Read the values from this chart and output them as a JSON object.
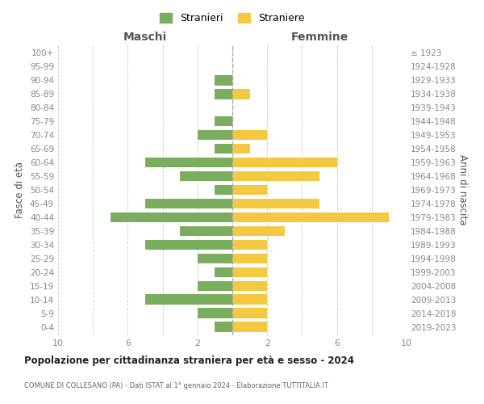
{
  "age_groups": [
    "0-4",
    "5-9",
    "10-14",
    "15-19",
    "20-24",
    "25-29",
    "30-34",
    "35-39",
    "40-44",
    "45-49",
    "50-54",
    "55-59",
    "60-64",
    "65-69",
    "70-74",
    "75-79",
    "80-84",
    "85-89",
    "90-94",
    "95-99",
    "100+"
  ],
  "birth_years": [
    "2019-2023",
    "2014-2018",
    "2009-2013",
    "2004-2008",
    "1999-2003",
    "1994-1998",
    "1989-1993",
    "1984-1988",
    "1979-1983",
    "1974-1978",
    "1969-1973",
    "1964-1968",
    "1959-1963",
    "1954-1958",
    "1949-1953",
    "1944-1948",
    "1939-1943",
    "1934-1938",
    "1929-1933",
    "1924-1928",
    "≤ 1923"
  ],
  "males": [
    1,
    2,
    5,
    2,
    1,
    2,
    5,
    3,
    7,
    5,
    1,
    3,
    5,
    1,
    2,
    1,
    0,
    1,
    1,
    0,
    0
  ],
  "females": [
    2,
    2,
    2,
    2,
    2,
    2,
    2,
    3,
    9,
    5,
    2,
    5,
    6,
    1,
    2,
    0,
    0,
    1,
    0,
    0,
    0
  ],
  "male_color": "#7aad5e",
  "female_color": "#f5c842",
  "bar_height": 0.75,
  "xlim": 10,
  "title": "Popolazione per cittadinanza straniera per età e sesso - 2024",
  "subtitle": "COMUNE DI COLLESANO (PA) - Dati ISTAT al 1° gennaio 2024 - Elaborazione TUTTITALIA.IT",
  "xlabel_left": "Maschi",
  "xlabel_right": "Femmine",
  "ylabel_left": "Fasce di età",
  "ylabel_right": "Anni di nascita",
  "legend_male": "Stranieri",
  "legend_female": "Straniere",
  "background_color": "#ffffff",
  "grid_color": "#d0d0d0"
}
